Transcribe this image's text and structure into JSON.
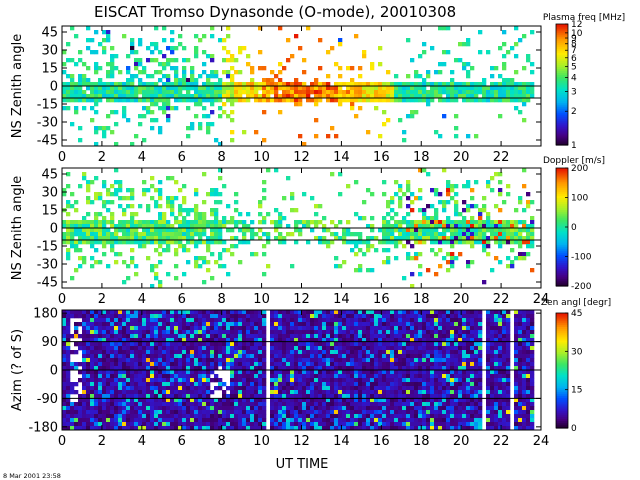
{
  "chart_data": [
    {
      "type": "heatmap",
      "title": "EISCAT Tromso Dynasonde (O-mode),  20010308",
      "ylabel": "NS Zenith angle",
      "x_ticks": [
        0,
        2,
        4,
        6,
        8,
        10,
        12,
        14,
        16,
        18,
        20,
        22
      ],
      "x_tick_labels": [
        "0",
        "2",
        "4",
        "6",
        "8",
        "10",
        "12",
        "14",
        "16",
        "18",
        "20",
        "22"
      ],
      "xlim": [
        0,
        24
      ],
      "y_ticks": [
        45,
        30,
        15,
        0,
        -15,
        -30,
        -45
      ],
      "y_tick_labels": [
        "45",
        "30",
        "15",
        "0",
        "-15",
        "-30",
        "-45"
      ],
      "ylim": [
        -50,
        50
      ],
      "colorbar": {
        "title": "Plasma freq [MHz]",
        "scale": "log",
        "range": [
          1,
          12
        ],
        "ticks": [
          1,
          2,
          3,
          4,
          5,
          6,
          7,
          8,
          9,
          10,
          12
        ],
        "tick_labels": [
          "1",
          "2",
          "3",
          "4",
          "5",
          "6",
          "7",
          "8",
          "9",
          "10",
          "12"
        ]
      }
    },
    {
      "type": "heatmap",
      "ylabel": "NS Zenith angle",
      "x_ticks": [
        0,
        2,
        4,
        6,
        8,
        10,
        12,
        14,
        16,
        18,
        20,
        22,
        24
      ],
      "x_tick_labels": [
        "0",
        "2",
        "4",
        "6",
        "8",
        "10",
        "12",
        "14",
        "16",
        "18",
        "20",
        "22",
        "24"
      ],
      "xlim": [
        0,
        24
      ],
      "y_ticks": [
        45,
        30,
        15,
        0,
        -15,
        -30,
        -45
      ],
      "y_tick_labels": [
        "45",
        "30",
        "15",
        "0",
        "-15",
        "-30",
        "-45"
      ],
      "ylim": [
        -50,
        50
      ],
      "colorbar": {
        "title": "Doppler [m/s]",
        "scale": "linear",
        "range": [
          -200,
          200
        ],
        "ticks": [
          200,
          100,
          0,
          -100,
          -200
        ],
        "tick_labels": [
          "200",
          "100",
          "0",
          "-100",
          "-200"
        ]
      }
    },
    {
      "type": "heatmap",
      "ylabel": "Azim (? of S)",
      "xlabel": "UT TIME",
      "x_ticks": [
        0,
        2,
        4,
        6,
        8,
        10,
        12,
        14,
        16,
        18,
        20,
        22,
        24
      ],
      "x_tick_labels": [
        "0",
        "2",
        "4",
        "6",
        "8",
        "10",
        "12",
        "14",
        "16",
        "18",
        "20",
        "22",
        "24"
      ],
      "xlim": [
        0,
        24
      ],
      "y_ticks": [
        180,
        90,
        0,
        -90,
        -180
      ],
      "y_tick_labels": [
        "180",
        "90",
        "0",
        "-90",
        "-180"
      ],
      "ylim": [
        -190,
        190
      ],
      "colorbar": {
        "title": "Zen angl [degr]",
        "scale": "linear",
        "range": [
          0,
          45
        ],
        "ticks": [
          45,
          30,
          15,
          0
        ],
        "tick_labels": [
          "45",
          "30",
          "15",
          "0"
        ]
      }
    }
  ],
  "footer": {
    "timestamp": "8 Mar 2001 23:58"
  }
}
